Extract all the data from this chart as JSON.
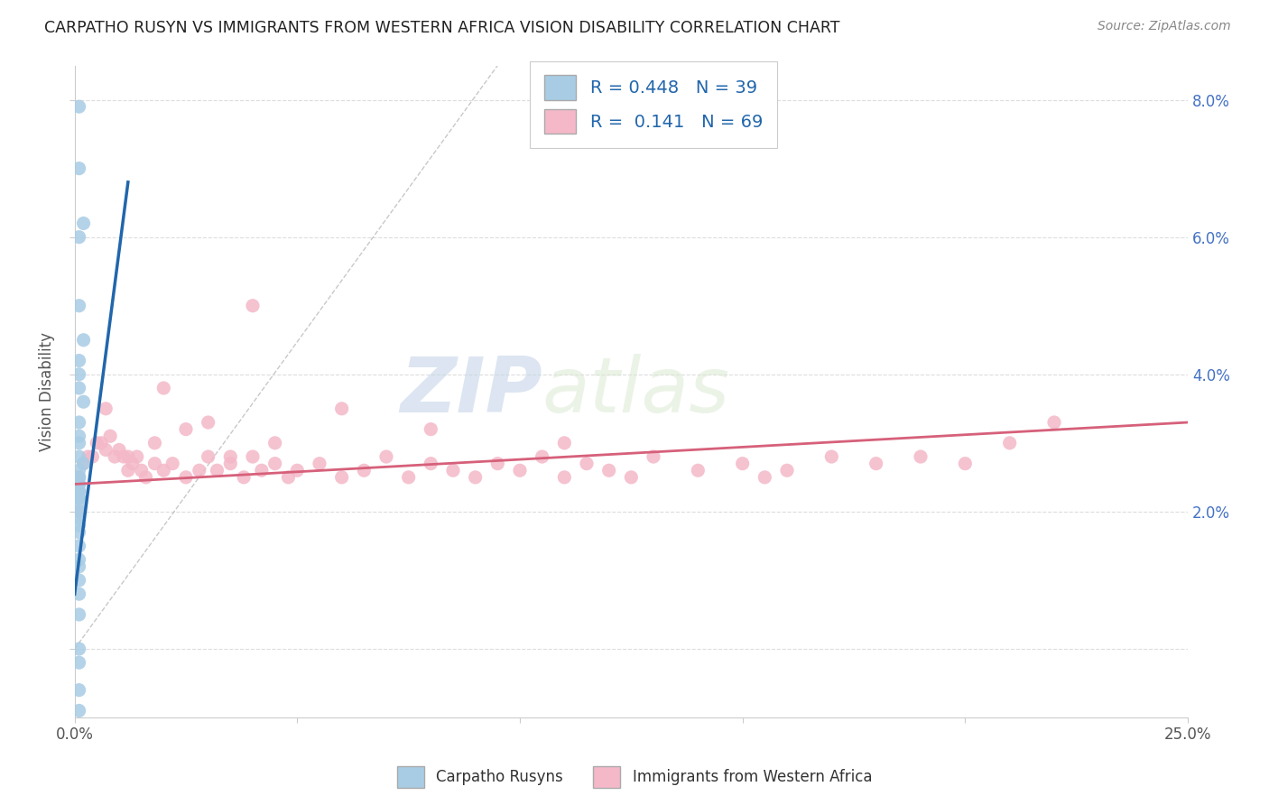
{
  "title": "CARPATHO RUSYN VS IMMIGRANTS FROM WESTERN AFRICA VISION DISABILITY CORRELATION CHART",
  "source": "Source: ZipAtlas.com",
  "ylabel": "Vision Disability",
  "xlim": [
    0.0,
    0.25
  ],
  "ylim": [
    -0.01,
    0.085
  ],
  "yticks": [
    0.0,
    0.02,
    0.04,
    0.06,
    0.08
  ],
  "yticklabels_right": [
    "",
    "2.0%",
    "4.0%",
    "6.0%",
    "8.0%"
  ],
  "watermark_zip": "ZIP",
  "watermark_atlas": "atlas",
  "legend_R1": "0.448",
  "legend_N1": "39",
  "legend_R2": "0.141",
  "legend_N2": "69",
  "blue_color": "#a8cce4",
  "pink_color": "#f4b8c8",
  "blue_line_color": "#2166ac",
  "pink_line_color": "#d6607a",
  "blue_scatter_x": [
    0.001,
    0.001,
    0.002,
    0.001,
    0.001,
    0.002,
    0.001,
    0.001,
    0.001,
    0.002,
    0.001,
    0.001,
    0.001,
    0.001,
    0.002,
    0.001,
    0.001,
    0.001,
    0.001,
    0.001,
    0.001,
    0.001,
    0.001,
    0.001,
    0.001,
    0.001,
    0.001,
    0.001,
    0.001,
    0.001,
    0.001,
    0.001,
    0.001,
    0.001,
    0.001,
    0.001,
    0.001,
    0.001,
    0.001
  ],
  "blue_scatter_y": [
    0.079,
    0.07,
    0.062,
    0.06,
    0.05,
    0.045,
    0.042,
    0.04,
    0.038,
    0.036,
    0.033,
    0.031,
    0.03,
    0.028,
    0.027,
    0.026,
    0.025,
    0.025,
    0.024,
    0.024,
    0.023,
    0.023,
    0.022,
    0.022,
    0.021,
    0.02,
    0.019,
    0.018,
    0.017,
    0.015,
    0.013,
    0.012,
    0.01,
    0.008,
    0.005,
    0.0,
    -0.002,
    -0.006,
    -0.009
  ],
  "pink_scatter_x": [
    0.001,
    0.002,
    0.003,
    0.004,
    0.005,
    0.006,
    0.007,
    0.008,
    0.009,
    0.01,
    0.011,
    0.012,
    0.013,
    0.014,
    0.015,
    0.016,
    0.018,
    0.02,
    0.022,
    0.025,
    0.028,
    0.03,
    0.032,
    0.035,
    0.038,
    0.04,
    0.042,
    0.045,
    0.048,
    0.05,
    0.055,
    0.06,
    0.065,
    0.07,
    0.075,
    0.08,
    0.085,
    0.09,
    0.095,
    0.1,
    0.105,
    0.11,
    0.115,
    0.12,
    0.125,
    0.13,
    0.14,
    0.15,
    0.155,
    0.16,
    0.17,
    0.18,
    0.19,
    0.2,
    0.21,
    0.22,
    0.007,
    0.012,
    0.018,
    0.025,
    0.035,
    0.045,
    0.06,
    0.08,
    0.04,
    0.02,
    0.03,
    0.11,
    0.001
  ],
  "pink_scatter_y": [
    0.025,
    0.027,
    0.028,
    0.028,
    0.03,
    0.03,
    0.029,
    0.031,
    0.028,
    0.029,
    0.028,
    0.026,
    0.027,
    0.028,
    0.026,
    0.025,
    0.027,
    0.026,
    0.027,
    0.025,
    0.026,
    0.028,
    0.026,
    0.027,
    0.025,
    0.028,
    0.026,
    0.027,
    0.025,
    0.026,
    0.027,
    0.025,
    0.026,
    0.028,
    0.025,
    0.027,
    0.026,
    0.025,
    0.027,
    0.026,
    0.028,
    0.025,
    0.027,
    0.026,
    0.025,
    0.028,
    0.026,
    0.027,
    0.025,
    0.026,
    0.028,
    0.027,
    0.028,
    0.027,
    0.03,
    0.033,
    0.035,
    0.028,
    0.03,
    0.032,
    0.028,
    0.03,
    0.035,
    0.032,
    0.05,
    0.038,
    0.033,
    0.03,
    0.02
  ],
  "blue_trend_x": [
    0.0,
    0.012
  ],
  "blue_trend_y": [
    0.008,
    0.068
  ],
  "pink_trend_x": [
    0.0,
    0.25
  ],
  "pink_trend_y": [
    0.024,
    0.033
  ],
  "ref_line_x": [
    0.0,
    0.095
  ],
  "ref_line_y": [
    0.0,
    0.085
  ]
}
